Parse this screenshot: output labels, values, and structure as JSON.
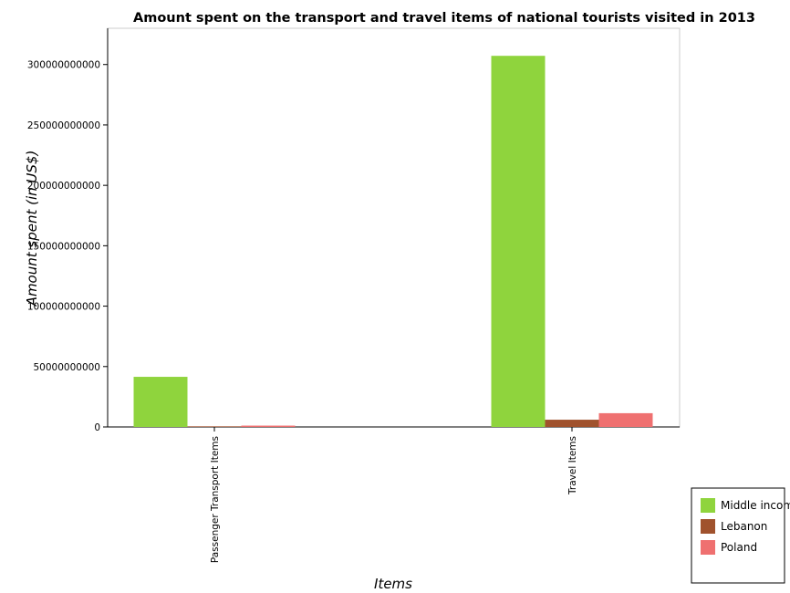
{
  "chart_data": {
    "type": "bar",
    "title": "Amount spent on the transport and travel items of national tourists visited in 2013",
    "xlabel": "Items",
    "ylabel": "Amount spent (in US$)",
    "categories": [
      "Passenger Transport Items",
      "Travel Items"
    ],
    "series": [
      {
        "name": "Middle income",
        "color": "#8fd43d",
        "values": [
          41500000000,
          307200000000
        ]
      },
      {
        "name": "Lebanon",
        "color": "#a0522d",
        "values": [
          500000000,
          6000000000
        ]
      },
      {
        "name": "Poland",
        "color": "#ef7070",
        "values": [
          1100000000,
          11400000000
        ]
      }
    ],
    "ylim": [
      0,
      330000000000
    ],
    "yticks": [
      0,
      50000000000,
      100000000000,
      150000000000,
      200000000000,
      250000000000,
      300000000000
    ],
    "ytick_labels": [
      "0",
      "50000000000",
      "100000000000",
      "150000000000",
      "200000000000",
      "250000000000",
      "300000000000"
    ],
    "legend_position": "bottom-right",
    "grid": false
  }
}
